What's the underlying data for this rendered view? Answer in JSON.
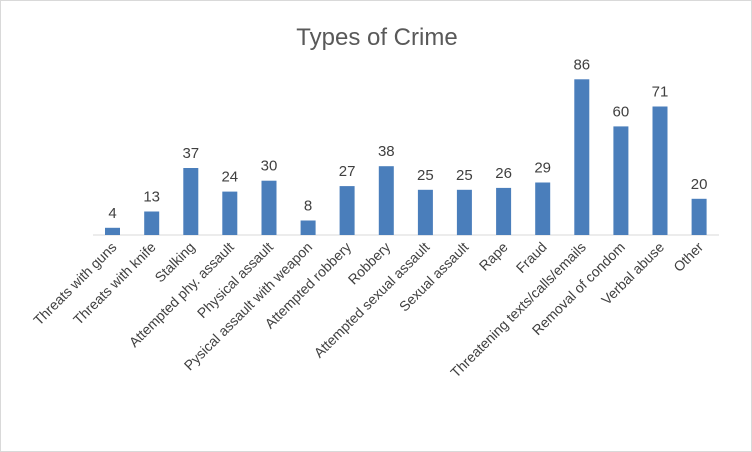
{
  "chart_data": {
    "type": "bar",
    "title": "Types of Crime",
    "xlabel": "",
    "ylabel": "",
    "ylim": [
      0,
      100
    ],
    "grid": false,
    "legend": "none",
    "bar_color": "#4a7ebb",
    "categories": [
      "Threats with guns",
      "Threats with knife",
      "Stalking",
      "Attempted phy. assault",
      "Physical assault",
      "Pysical assault with weapon",
      "Attempted robbery",
      "Robbery",
      "Attempted sexual assault",
      "Sexual assault",
      "Rape",
      "Fraud",
      "Threatening texts/calls/emails",
      "Removal of condom",
      "Verbal abuse",
      "Other"
    ],
    "values": [
      4,
      13,
      37,
      24,
      30,
      8,
      27,
      38,
      25,
      25,
      26,
      29,
      86,
      60,
      71,
      20
    ]
  }
}
